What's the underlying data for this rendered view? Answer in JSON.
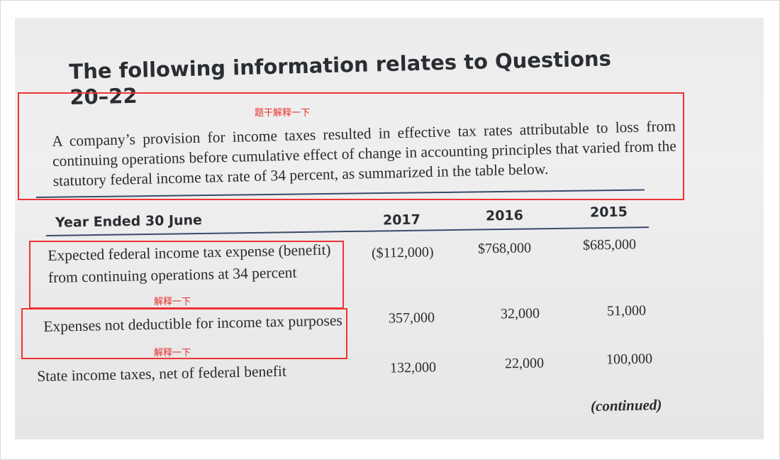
{
  "heading": "The following information relates to Questions 20–22",
  "intro": "A company’s provision for income taxes resulted in effective tax rates attributable to loss from continuing operations before cumulative effect of change in accounting principles that varied from the statutory federal income tax rate of 34 percent, as summarized in the table below.",
  "table": {
    "header": {
      "label": "Year Ended 30 June",
      "years": [
        "2017",
        "2016",
        "2015"
      ]
    },
    "rows": [
      {
        "label": "Expected federal income tax expense (benefit) from continuing operations at 34 percent",
        "values": [
          "($112,000)",
          "$768,000",
          "$685,000"
        ]
      },
      {
        "label": "Expenses not deductible for income tax purposes",
        "values": [
          "357,000",
          "32,000",
          "51,000"
        ]
      },
      {
        "label": "State income taxes, net of federal benefit",
        "values": [
          "132,000",
          "22,000",
          "100,000"
        ]
      }
    ]
  },
  "continued": "(continued)",
  "annotations": {
    "color": "#ef3434",
    "stem_note": "题干解释一下",
    "row1_note": "解释一下",
    "row2_note": "解释一下"
  }
}
